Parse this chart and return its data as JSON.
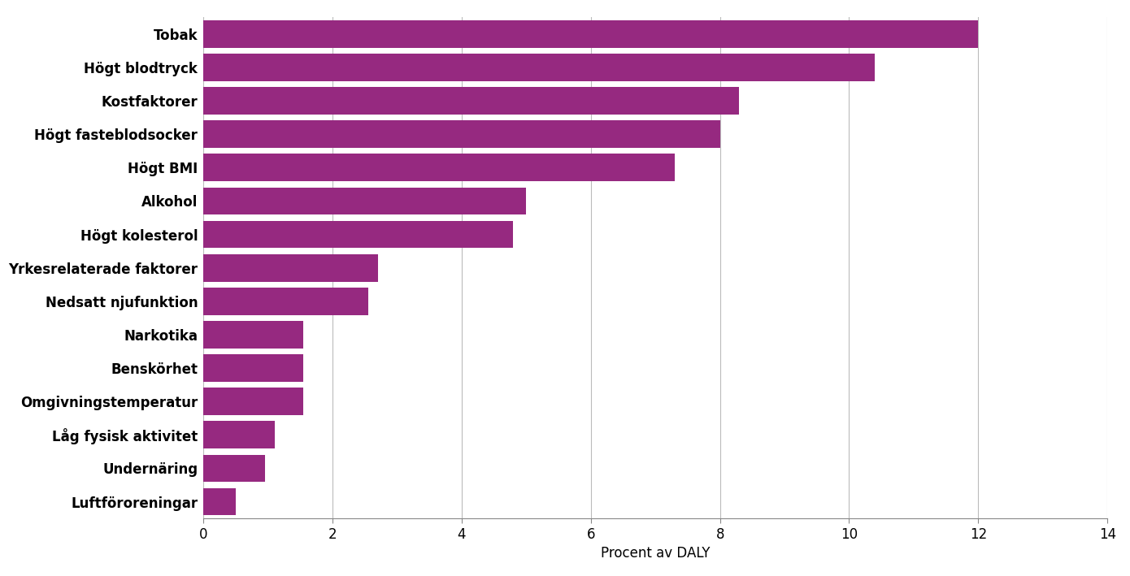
{
  "categories": [
    "Luftföroreningar",
    "Undernäring",
    "Låg fysisk aktivitet",
    "Omgivningstemperatur",
    "Benskörhet",
    "Narkotika",
    "Nedsatt njufunktion",
    "Yrkesrelaterade faktorer",
    "Högt kolesterol",
    "Alkohol",
    "Högt BMI",
    "Högt fasteblodsocker",
    "Kostfaktorer",
    "Högt blodtryck",
    "Tobak"
  ],
  "values": [
    0.5,
    0.95,
    1.1,
    1.55,
    1.55,
    1.55,
    2.55,
    2.7,
    4.8,
    5.0,
    7.3,
    8.0,
    8.3,
    10.4,
    12.0
  ],
  "bar_color": "#962980",
  "xlabel": "Procent av DALY",
  "xlim": [
    0,
    14
  ],
  "xticks": [
    0,
    2,
    4,
    6,
    8,
    10,
    12,
    14
  ],
  "background_color": "#ffffff",
  "grid_color": "#bbbbbb",
  "bar_height": 0.82,
  "figsize": [
    13.9,
    7.09
  ],
  "dpi": 100,
  "label_fontsize": 12,
  "xlabel_fontsize": 12,
  "xtick_fontsize": 12
}
